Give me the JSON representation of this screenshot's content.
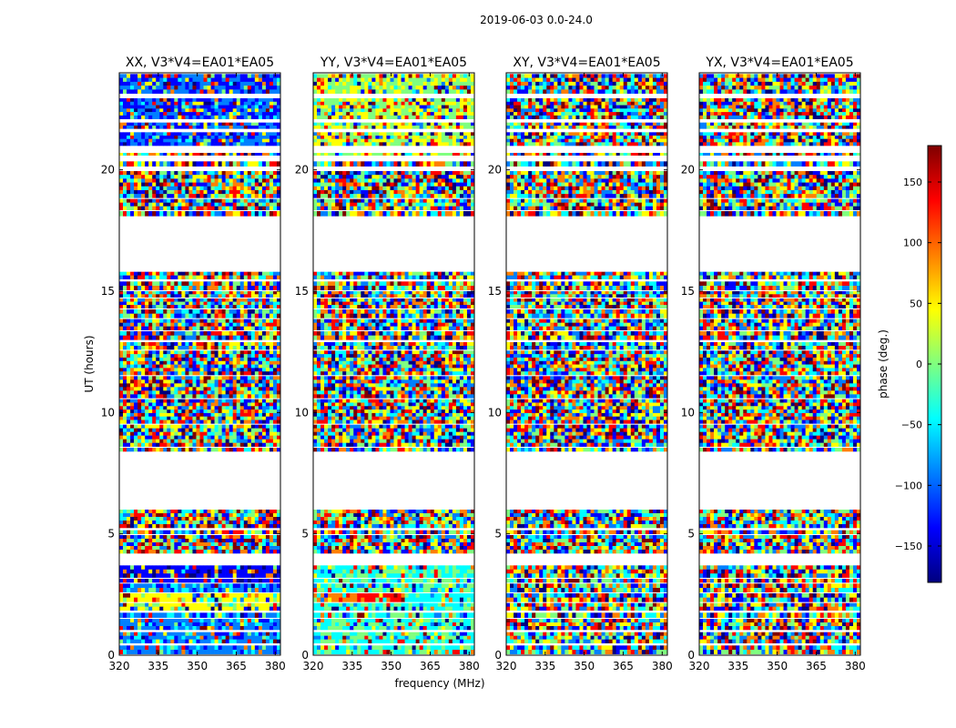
{
  "figure_title": "2019-06-03 0.0-24.0",
  "chart_data": {
    "type": "heatmap",
    "panels": [
      {
        "title": "XX, V3*V4=EA01*EA05"
      },
      {
        "title": "YY, V3*V4=EA01*EA05"
      },
      {
        "title": "XY, V3*V4=EA01*EA05"
      },
      {
        "title": "YX, V3*V4=EA01*EA05"
      }
    ],
    "xlabel": "frequency (MHz)",
    "ylabel": "UT (hours)",
    "xlim": [
      320,
      382
    ],
    "ylim": [
      0,
      24
    ],
    "xticks": [
      320,
      335,
      350,
      365,
      380
    ],
    "yticks": [
      0,
      5,
      10,
      15,
      20
    ],
    "colorbar": {
      "label": "phase (deg.)",
      "range": [
        -180,
        180
      ],
      "ticks": [
        -150,
        -100,
        -50,
        0,
        50,
        100,
        150
      ],
      "tick_labels": [
        "−150",
        "−100",
        "−50",
        "0",
        "50",
        "100",
        "150"
      ],
      "colormap": "jet",
      "colors": [
        "#00007f",
        "#0000ff",
        "#007fff",
        "#00ffff",
        "#7fff7f",
        "#ffff00",
        "#ff7f00",
        "#ff0000",
        "#7f0000"
      ]
    },
    "flagged_gaps_hours": [
      [
        6.0,
        8.4
      ],
      [
        15.8,
        18.1
      ]
    ],
    "data_rows_hours": [
      [
        0.05,
        0.4
      ],
      [
        0.5,
        0.95
      ],
      [
        1.05,
        1.5
      ],
      [
        1.55,
        1.75
      ],
      [
        1.85,
        2.15
      ],
      [
        2.2,
        2.55
      ],
      [
        2.6,
        2.95
      ],
      [
        3.0,
        3.15
      ],
      [
        3.2,
        3.7
      ],
      [
        4.2,
        4.95
      ],
      [
        5.0,
        5.15
      ],
      [
        5.25,
        6.0
      ],
      [
        8.4,
        8.55
      ],
      [
        8.6,
        9.5
      ],
      [
        9.55,
        10.55
      ],
      [
        10.6,
        11.5
      ],
      [
        11.55,
        12.55
      ],
      [
        12.6,
        12.9
      ],
      [
        13.0,
        13.35
      ],
      [
        13.4,
        13.85
      ],
      [
        13.9,
        14.25
      ],
      [
        14.3,
        14.7
      ],
      [
        14.75,
        15.0
      ],
      [
        15.05,
        15.4
      ],
      [
        15.5,
        15.8
      ],
      [
        18.1,
        18.3
      ],
      [
        18.35,
        18.8
      ],
      [
        18.85,
        19.95
      ],
      [
        20.15,
        20.35
      ],
      [
        20.6,
        20.7
      ],
      [
        21.0,
        21.55
      ],
      [
        21.7,
        21.95
      ],
      [
        22.1,
        22.95
      ],
      [
        23.15,
        23.95
      ]
    ]
  }
}
